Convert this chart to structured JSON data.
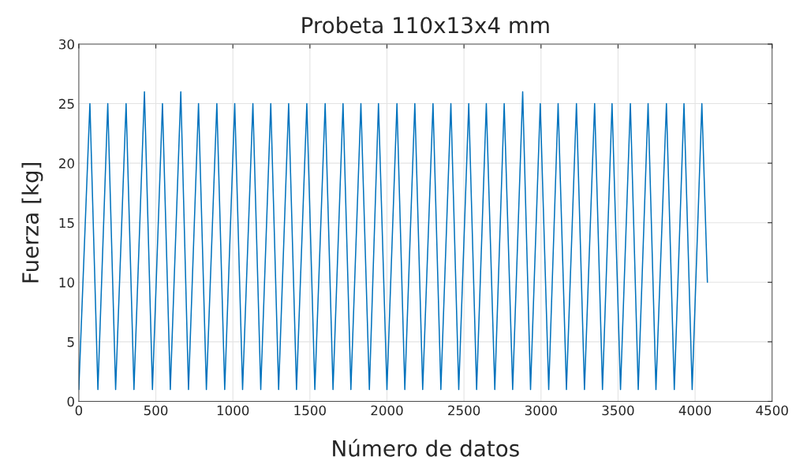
{
  "chart_data": {
    "type": "line",
    "title": "Probeta 110x13x4 mm",
    "xlabel": "Número de datos",
    "ylabel": "Fuerza [kg]",
    "series": [
      {
        "color": "#0072bd",
        "x": [
          0,
          72,
          124,
          188,
          239,
          307,
          358,
          426,
          478,
          543,
          594,
          662,
          712,
          777,
          828,
          896,
          947,
          1012,
          1063,
          1130,
          1181,
          1246,
          1297,
          1362,
          1413,
          1480,
          1532,
          1599,
          1650,
          1715,
          1766,
          1831,
          1886,
          1945,
          2000,
          2065,
          2116,
          2181,
          2232,
          2299,
          2350,
          2415,
          2466,
          2531,
          2582,
          2645,
          2700,
          2761,
          2816,
          2881,
          2932,
          2995,
          3050,
          3111,
          3165,
          3230,
          3282,
          3348,
          3399,
          3461,
          3516,
          3580,
          3631,
          3695,
          3746,
          3814,
          3865,
          3928,
          3981,
          4044,
          4080
        ],
        "values": [
          1,
          25,
          1,
          25,
          1,
          25,
          1,
          26,
          1,
          25,
          1,
          26,
          1,
          25,
          1,
          25,
          1,
          25,
          1,
          25,
          1,
          25,
          1,
          25,
          1,
          25,
          1,
          25,
          1,
          25,
          1,
          25,
          1,
          25,
          1,
          25,
          1,
          25,
          1,
          25,
          1,
          25,
          1,
          25,
          1,
          25,
          1,
          25,
          1,
          26,
          1,
          25,
          1,
          25,
          1,
          25,
          1,
          25,
          1,
          25,
          1,
          25,
          1,
          25,
          1,
          25,
          1,
          25,
          1,
          25,
          10
        ]
      }
    ],
    "xlim": [
      0,
      4500
    ],
    "xticks": [
      0,
      500,
      1000,
      1500,
      2000,
      2500,
      3000,
      3500,
      4000,
      4500
    ],
    "ylim": [
      0,
      30
    ],
    "yticks": [
      0,
      5,
      10,
      15,
      20,
      25,
      30
    ],
    "grid": true,
    "line_style": "solid",
    "marker": "none"
  }
}
